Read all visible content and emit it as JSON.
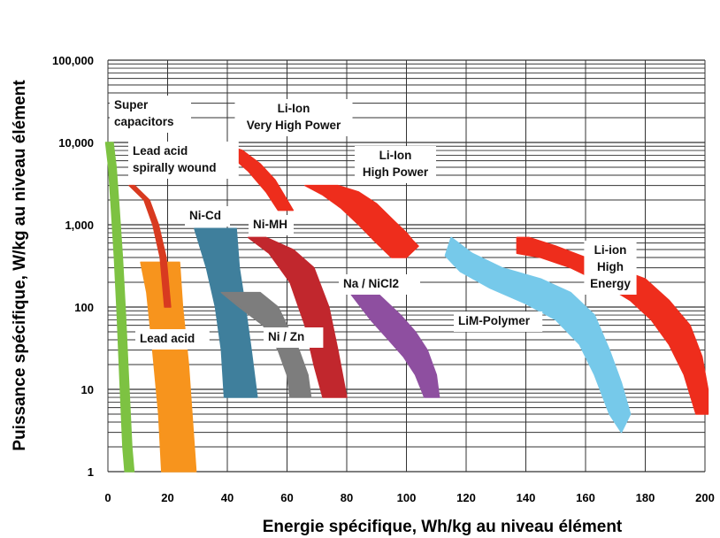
{
  "chart_data": {
    "type": "area",
    "xlabel": "Energie spécifique, Wh/kg au niveau élément",
    "ylabel": "Puissance spécifique, W/kg au niveau élément",
    "xlim": [
      0,
      200
    ],
    "ylim": [
      1,
      100000
    ],
    "yscale": "log",
    "grid": true,
    "x_ticks": [
      "0",
      "20",
      "40",
      "60",
      "80",
      "100",
      "120",
      "140",
      "160",
      "180",
      "200"
    ],
    "y_ticks": [
      "1",
      "10",
      "100",
      "1,000",
      "10,000",
      "100,000"
    ],
    "colors": {
      "super_capacitors": "#7dc242",
      "lead_acid": "#f7941d",
      "lead_acid_spirally_wound": "#d83a20",
      "nicd": "#3f7f9c",
      "nizn": "#7d7d7d",
      "nimh": "#c1272d",
      "nanicl2": "#8e4fa0",
      "li_ion": "#ee2d1c",
      "lim_polymer": "#76c9ea"
    },
    "series": [
      {
        "name": "Super capacitors",
        "label_lines": [
          "Super",
          "capacitors"
        ],
        "color_key": "super_capacitors",
        "band": [
          [
            0.5,
            10000
          ],
          [
            1.5,
            5000
          ],
          [
            2.5,
            1500
          ],
          [
            3.5,
            400
          ],
          [
            4.5,
            80
          ],
          [
            5.5,
            12
          ],
          [
            6.5,
            2
          ],
          [
            7.2,
            1
          ]
        ],
        "width": [
          2.5,
          2.5,
          2.6,
          2.7,
          2.8,
          2.9,
          3.0,
          3.0
        ]
      },
      {
        "name": "Lead acid",
        "label_lines": [
          "Lead acid"
        ],
        "color_key": "lead_acid",
        "polygon": [
          [
            11,
            350
          ],
          [
            24,
            350
          ],
          [
            25,
            100
          ],
          [
            27,
            20
          ],
          [
            29.5,
            1
          ],
          [
            18,
            1
          ],
          [
            17,
            5
          ],
          [
            15,
            30
          ],
          [
            13,
            150
          ]
        ]
      },
      {
        "name": "Lead acid spirally wound",
        "label_lines": [
          "Lead acid",
          "spirally wound"
        ],
        "color_key": "lead_acid_spirally_wound",
        "band": [
          [
            8,
            3000
          ],
          [
            13,
            2000
          ],
          [
            16,
            1000
          ],
          [
            18.5,
            400
          ],
          [
            20,
            100
          ]
        ],
        "width": [
          1.8,
          1.8,
          1.9,
          2.0,
          2.0
        ]
      },
      {
        "name": "Ni-Cd",
        "label_lines": [
          "Ni-Cd"
        ],
        "color_key": "nicd",
        "polygon": [
          [
            29,
            900
          ],
          [
            43,
            900
          ],
          [
            44,
            300
          ],
          [
            46,
            100
          ],
          [
            48,
            30
          ],
          [
            50,
            8
          ],
          [
            39,
            8
          ],
          [
            38,
            30
          ],
          [
            36,
            100
          ],
          [
            33,
            300
          ]
        ]
      },
      {
        "name": "Ni / Zn",
        "label_lines": [
          "Ni / Zn"
        ],
        "color_key": "nizn",
        "polygon": [
          [
            38,
            150
          ],
          [
            51,
            150
          ],
          [
            57,
            100
          ],
          [
            61,
            50
          ],
          [
            64,
            30
          ],
          [
            67,
            15
          ],
          [
            68,
            8
          ],
          [
            61,
            8
          ],
          [
            60,
            15
          ],
          [
            57,
            30
          ],
          [
            52,
            60
          ],
          [
            44,
            100
          ]
        ]
      },
      {
        "name": "Ni-MH",
        "label_lines": [
          "Ni-MH"
        ],
        "color_key": "nimh",
        "polygon": [
          [
            47,
            700
          ],
          [
            53,
            700
          ],
          [
            62,
            500
          ],
          [
            69,
            300
          ],
          [
            74,
            100
          ],
          [
            77,
            30
          ],
          [
            80,
            8
          ],
          [
            72,
            8
          ],
          [
            69,
            20
          ],
          [
            66,
            60
          ],
          [
            61,
            200
          ],
          [
            54,
            450
          ]
        ]
      },
      {
        "name": "Na / NiCl2",
        "label_lines": [
          "Na / NiCl2"
        ],
        "color_key": "nanicl2",
        "polygon": [
          [
            81,
            150
          ],
          [
            90,
            150
          ],
          [
            98,
            80
          ],
          [
            103,
            50
          ],
          [
            107,
            30
          ],
          [
            110,
            15
          ],
          [
            111,
            8
          ],
          [
            106,
            8
          ],
          [
            103,
            15
          ],
          [
            99,
            25
          ],
          [
            94,
            40
          ],
          [
            88,
            70
          ]
        ]
      },
      {
        "name": "Li-Ion Very High Power",
        "label_lines": [
          "Li-Ion",
          "Very High Power"
        ],
        "color_key": "li_ion",
        "polygon": [
          [
            29,
            10000
          ],
          [
            37,
            10000
          ],
          [
            45,
            8000
          ],
          [
            51,
            5500
          ],
          [
            56,
            3500
          ],
          [
            60,
            2000
          ],
          [
            62,
            1500
          ],
          [
            57,
            1500
          ],
          [
            53,
            2500
          ],
          [
            47,
            4500
          ],
          [
            40,
            7500
          ]
        ]
      },
      {
        "name": "Li-Ion High Power",
        "label_lines": [
          "Li-Ion",
          "High Power"
        ],
        "color_key": "li_ion",
        "polygon": [
          [
            66,
            3000
          ],
          [
            77,
            3000
          ],
          [
            84,
            2500
          ],
          [
            90,
            1800
          ],
          [
            96,
            1100
          ],
          [
            100,
            800
          ],
          [
            102,
            650
          ],
          [
            104,
            550
          ],
          [
            100,
            400
          ],
          [
            95,
            400
          ],
          [
            89,
            650
          ],
          [
            84,
            1000
          ],
          [
            78,
            1600
          ],
          [
            72,
            2300
          ]
        ]
      },
      {
        "name": "LiM-Polymer",
        "label_lines": [
          "LiM-Polymer"
        ],
        "color_key": "lim_polymer",
        "polygon": [
          [
            115,
            700
          ],
          [
            122,
            450
          ],
          [
            132,
            300
          ],
          [
            145,
            220
          ],
          [
            155,
            150
          ],
          [
            163,
            80
          ],
          [
            168,
            30
          ],
          [
            172,
            12
          ],
          [
            175,
            5
          ],
          [
            172,
            3
          ],
          [
            168,
            5
          ],
          [
            163,
            15
          ],
          [
            158,
            35
          ],
          [
            150,
            70
          ],
          [
            140,
            110
          ],
          [
            128,
            170
          ],
          [
            118,
            270
          ],
          [
            113,
            420
          ]
        ]
      },
      {
        "name": "Li-ion High Energy",
        "label_lines": [
          "Li-ion",
          "High",
          "Energy"
        ],
        "color_key": "li_ion",
        "polygon": [
          [
            137,
            700
          ],
          [
            141,
            700
          ],
          [
            150,
            550
          ],
          [
            160,
            400
          ],
          [
            170,
            300
          ],
          [
            180,
            220
          ],
          [
            188,
            120
          ],
          [
            195,
            60
          ],
          [
            199,
            25
          ],
          [
            201,
            10
          ],
          [
            201,
            5
          ],
          [
            197,
            5
          ],
          [
            193,
            15
          ],
          [
            188,
            35
          ],
          [
            182,
            70
          ],
          [
            175,
            120
          ],
          [
            165,
            200
          ],
          [
            155,
            300
          ],
          [
            145,
            400
          ],
          [
            137,
            450
          ]
        ]
      }
    ]
  }
}
